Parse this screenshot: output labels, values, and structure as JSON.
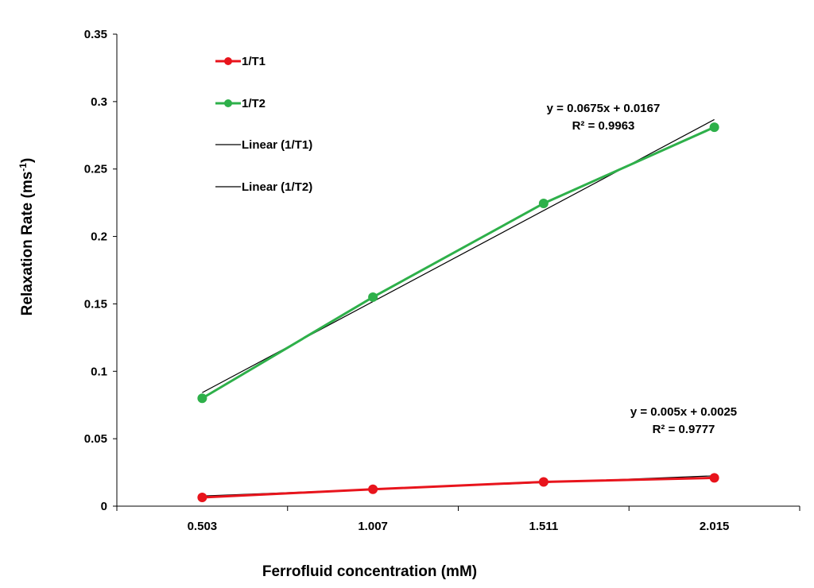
{
  "chart_data": {
    "type": "line",
    "title": "",
    "xlabel": "Ferrofluid concentration (mM)",
    "ylabel": "Relaxation Rate (ms",
    "ylabel_sup": "-1",
    "ylabel_close": ")",
    "categories": [
      "0.503",
      "1.007",
      "1.511",
      "2.015"
    ],
    "ylim": [
      0,
      0.35
    ],
    "yticks": [
      "0",
      "0.05",
      "0.1",
      "0.15",
      "0.2",
      "0.25",
      "0.3",
      "0.35"
    ],
    "ytick_values": [
      0,
      0.05,
      0.1,
      0.15,
      0.2,
      0.25,
      0.3,
      0.35
    ],
    "grid": false,
    "legend_position": "top-left",
    "series": [
      {
        "name": "1/T1",
        "color": "#e8141c",
        "values": [
          0.0065,
          0.0125,
          0.018,
          0.021
        ]
      },
      {
        "name": "1/T2",
        "color": "#2eb04a",
        "values": [
          0.08,
          0.155,
          0.2245,
          0.281
        ]
      }
    ],
    "trendlines": [
      {
        "name": "Linear (1/T1)",
        "color": "#000000",
        "slope": 0.005,
        "intercept": 0.0025,
        "equation": "y = 0.005x + 0.0025",
        "r2": "R² = 0.9777"
      },
      {
        "name": "Linear (1/T2)",
        "color": "#000000",
        "slope": 0.0675,
        "intercept": 0.0167,
        "equation": "y = 0.0675x + 0.0167",
        "r2": "R² = 0.9963"
      }
    ]
  }
}
